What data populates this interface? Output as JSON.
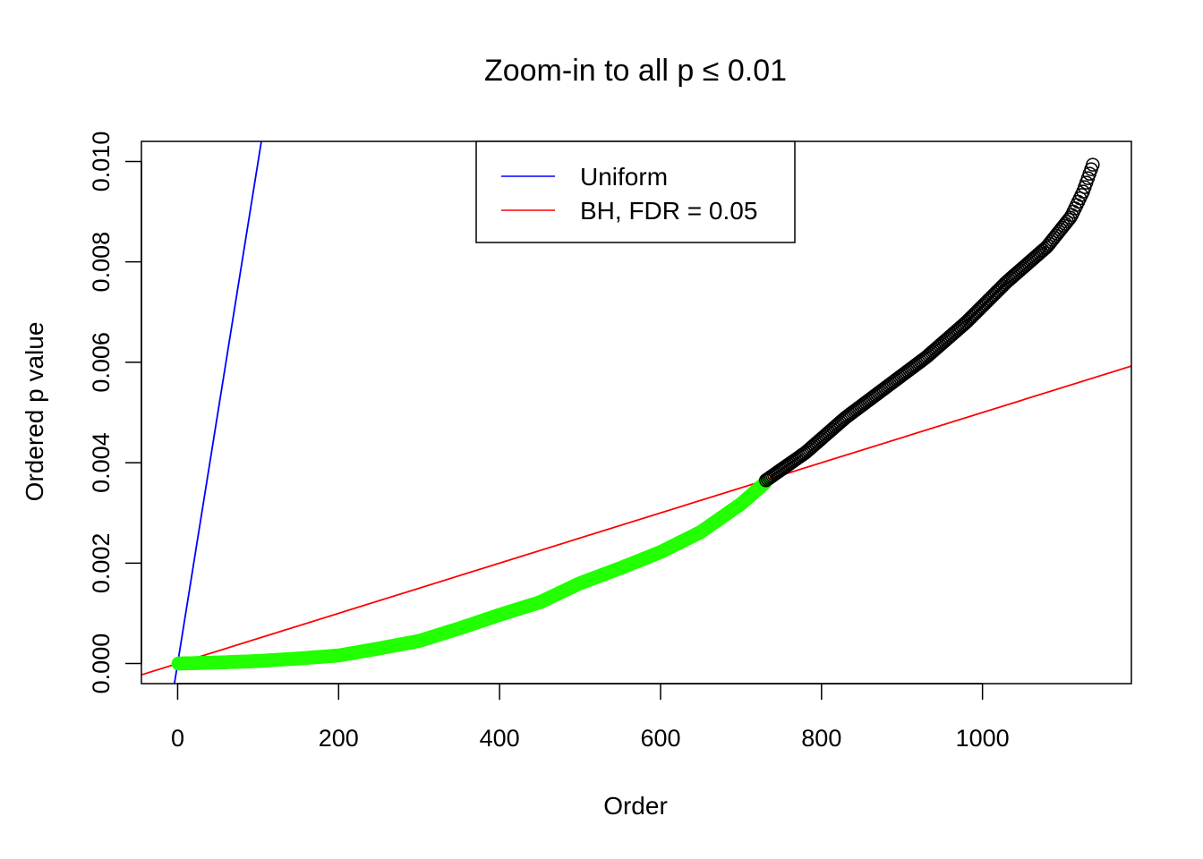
{
  "chart_data": {
    "type": "scatter",
    "title": "Zoom-in to all p ≤ 0.01",
    "xlabel": "Order",
    "ylabel": "Ordered p value",
    "xlim": [
      -45,
      1185
    ],
    "ylim": [
      -0.0004,
      0.0104
    ],
    "x_ticks": [
      0,
      200,
      400,
      600,
      800,
      1000
    ],
    "x_tick_labels": [
      "0",
      "200",
      "400",
      "600",
      "800",
      "1000"
    ],
    "y_ticks": [
      0,
      0.002,
      0.004,
      0.006,
      0.008,
      0.01
    ],
    "y_tick_labels": [
      "0.000",
      "0.002",
      "0.004",
      "0.006",
      "0.008",
      "0.010"
    ],
    "grid": false,
    "legend": {
      "placement": "top-center",
      "entries": [
        {
          "label": "Uniform",
          "color": "#0000ff"
        },
        {
          "label": "BH, FDR = 0.05",
          "color": "#ff0000"
        }
      ]
    },
    "lines": [
      {
        "name": "Uniform",
        "color": "#0000ff",
        "intercept": 0,
        "slope": 0.0001,
        "x_range": [
          -5,
          104
        ]
      },
      {
        "name": "BH, FDR = 0.05",
        "color": "#ff0000",
        "intercept": 0,
        "slope": 5e-06,
        "x_range": [
          -45,
          1185
        ]
      }
    ],
    "series": [
      {
        "color": "#22ff00",
        "x_range": [
          1,
          730
        ],
        "points": [
          [
            1,
            0.0
          ],
          [
            50,
            2e-05
          ],
          [
            100,
            5e-05
          ],
          [
            150,
            0.0001
          ],
          [
            200,
            0.00016
          ],
          [
            250,
            0.0003
          ],
          [
            300,
            0.00045
          ],
          [
            350,
            0.0007
          ],
          [
            400,
            0.00097
          ],
          [
            450,
            0.00122
          ],
          [
            500,
            0.0016
          ],
          [
            550,
            0.0019
          ],
          [
            600,
            0.00222
          ],
          [
            650,
            0.00262
          ],
          [
            700,
            0.00318
          ],
          [
            730,
            0.0036
          ]
        ]
      },
      {
        "color": "#000000",
        "x_range": [
          731,
          1138
        ],
        "points": [
          [
            731,
            0.00365
          ],
          [
            780,
            0.0042
          ],
          [
            830,
            0.0049
          ],
          [
            880,
            0.0055
          ],
          [
            930,
            0.0061
          ],
          [
            980,
            0.0068
          ],
          [
            1030,
            0.0076
          ],
          [
            1080,
            0.0083
          ],
          [
            1110,
            0.0089
          ],
          [
            1125,
            0.0094
          ],
          [
            1138,
            0.00998
          ]
        ]
      }
    ]
  }
}
